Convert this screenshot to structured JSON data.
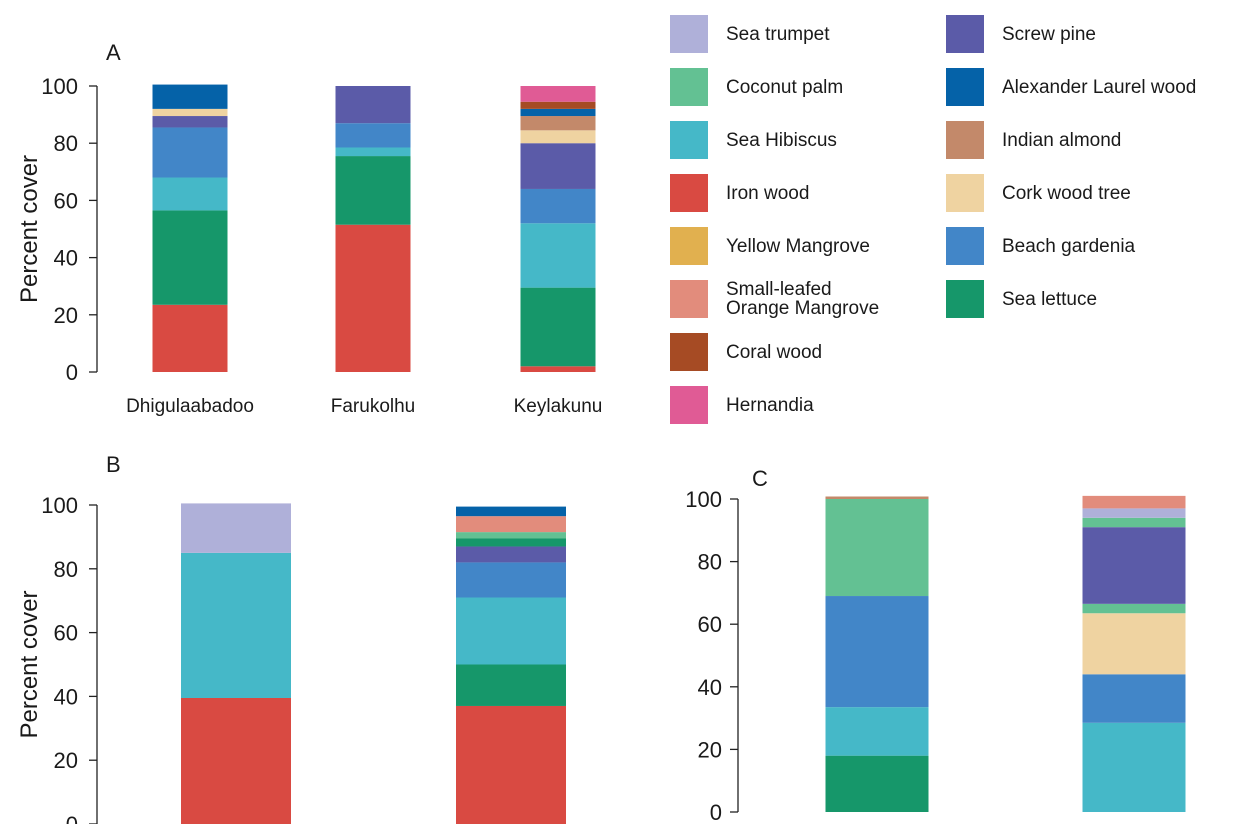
{
  "species_colors": {
    "Sea trumpet": "#afb0d9",
    "Coconut palm": "#63c193",
    "Sea Hibiscus": "#45b8c8",
    "Iron wood": "#d94a42",
    "Yellow Mangrove": "#e1b04f",
    "Small-leafed Orange Mangrove": "#e28c7c",
    "Coral wood": "#a64b24",
    "Hernandia": "#e05b95",
    "Screw pine": "#5b5ba8",
    "Alexander Laurel wood": "#0562a8",
    "Indian almond": "#c3896a",
    "Cork wood tree": "#efd3a1",
    "Beach gardenia": "#4286c8",
    "Sea lettuce": "#16976a"
  },
  "legend": {
    "col1": [
      {
        "key": "Sea trumpet",
        "label": "Sea trumpet"
      },
      {
        "key": "Coconut palm",
        "label": "Coconut palm"
      },
      {
        "key": "Sea Hibiscus",
        "label": "Sea Hibiscus"
      },
      {
        "key": "Iron wood",
        "label": "Iron wood"
      },
      {
        "key": "Yellow Mangrove",
        "label": "Yellow Mangrove"
      },
      {
        "key": "Small-leafed Orange Mangrove",
        "label": "Small-leafed\nOrange Mangrove"
      },
      {
        "key": "Coral wood",
        "label": "Coral wood"
      },
      {
        "key": "Hernandia",
        "label": "Hernandia"
      }
    ],
    "col2": [
      {
        "key": "Screw pine",
        "label": "Screw pine"
      },
      {
        "key": "Alexander Laurel wood",
        "label": "Alexander Laurel wood"
      },
      {
        "key": "Indian almond",
        "label": "Indian almond"
      },
      {
        "key": "Cork wood tree",
        "label": "Cork wood tree"
      },
      {
        "key": "Beach gardenia",
        "label": "Beach gardenia"
      },
      {
        "key": "Sea lettuce",
        "label": "Sea lettuce"
      }
    ]
  },
  "chart_data": [
    {
      "panel": "A",
      "type": "bar",
      "stacked": true,
      "ylabel": "Percent cover",
      "ylim": [
        0,
        100
      ],
      "yticks": [
        0,
        20,
        40,
        60,
        80,
        100
      ],
      "categories": [
        "Dhigulaabadoo",
        "Farukolhu",
        "Keylakunu"
      ],
      "stacks": [
        [
          {
            "species": "Iron wood",
            "value": 23.5
          },
          {
            "species": "Sea lettuce",
            "value": 33.0
          },
          {
            "species": "Sea Hibiscus",
            "value": 11.5
          },
          {
            "species": "Beach gardenia",
            "value": 17.5
          },
          {
            "species": "Screw pine",
            "value": 4.0
          },
          {
            "species": "Cork wood tree",
            "value": 2.5
          },
          {
            "species": "Alexander Laurel wood",
            "value": 8.5
          }
        ],
        [
          {
            "species": "Iron wood",
            "value": 51.5
          },
          {
            "species": "Sea lettuce",
            "value": 24.0
          },
          {
            "species": "Sea Hibiscus",
            "value": 3.0
          },
          {
            "species": "Beach gardenia",
            "value": 8.5
          },
          {
            "species": "Screw pine",
            "value": 13.0
          }
        ],
        [
          {
            "species": "Iron wood",
            "value": 2.0
          },
          {
            "species": "Sea lettuce",
            "value": 27.5
          },
          {
            "species": "Sea Hibiscus",
            "value": 22.5
          },
          {
            "species": "Beach gardenia",
            "value": 12.0
          },
          {
            "species": "Screw pine",
            "value": 16.0
          },
          {
            "species": "Cork wood tree",
            "value": 4.5
          },
          {
            "species": "Indian almond",
            "value": 5.0
          },
          {
            "species": "Alexander Laurel wood",
            "value": 2.5
          },
          {
            "species": "Coral wood",
            "value": 2.5
          },
          {
            "species": "Hernandia",
            "value": 5.5
          }
        ]
      ]
    },
    {
      "panel": "B",
      "type": "bar",
      "stacked": true,
      "ylabel": "Percent cover",
      "ylim": [
        0,
        100
      ],
      "yticks": [
        0,
        20,
        40,
        60,
        80,
        100
      ],
      "categories": [
        "",
        ""
      ],
      "stacks": [
        [
          {
            "species": "Iron wood",
            "value": 39.5
          },
          {
            "species": "Sea Hibiscus",
            "value": 45.5
          },
          {
            "species": "Sea trumpet",
            "value": 15.5
          }
        ],
        [
          {
            "species": "Iron wood",
            "value": 37.0
          },
          {
            "species": "Sea lettuce",
            "value": 13.0
          },
          {
            "species": "Sea Hibiscus",
            "value": 21.0
          },
          {
            "species": "Beach gardenia",
            "value": 11.0
          },
          {
            "species": "Screw pine",
            "value": 5.0
          },
          {
            "species": "Sea lettuce",
            "value": 2.5
          },
          {
            "species": "Coconut palm",
            "value": 2.0
          },
          {
            "species": "Small-leafed Orange Mangrove",
            "value": 5.0
          },
          {
            "species": "Alexander Laurel wood",
            "value": 3.0
          }
        ]
      ]
    },
    {
      "panel": "C",
      "type": "bar",
      "stacked": true,
      "ylabel": "",
      "ylim": [
        0,
        100
      ],
      "yticks": [
        0,
        20,
        40,
        60,
        80,
        100
      ],
      "categories": [
        "",
        ""
      ],
      "stacks": [
        [
          {
            "species": "Sea lettuce",
            "value": 18.0
          },
          {
            "species": "Sea Hibiscus",
            "value": 15.5
          },
          {
            "species": "Beach gardenia",
            "value": 35.5
          },
          {
            "species": "Coconut palm",
            "value": 31.0
          },
          {
            "species": "Indian almond",
            "value": 0.8
          }
        ],
        [
          {
            "species": "Sea Hibiscus",
            "value": 28.5
          },
          {
            "species": "Beach gardenia",
            "value": 15.5
          },
          {
            "species": "Cork wood tree",
            "value": 19.5
          },
          {
            "species": "Coconut palm",
            "value": 3.0
          },
          {
            "species": "Screw pine",
            "value": 24.5
          },
          {
            "species": "Coconut palm",
            "value": 3.0
          },
          {
            "species": "Sea trumpet",
            "value": 3.0
          },
          {
            "species": "Small-leafed Orange Mangrove",
            "value": 4.0
          }
        ]
      ]
    }
  ]
}
